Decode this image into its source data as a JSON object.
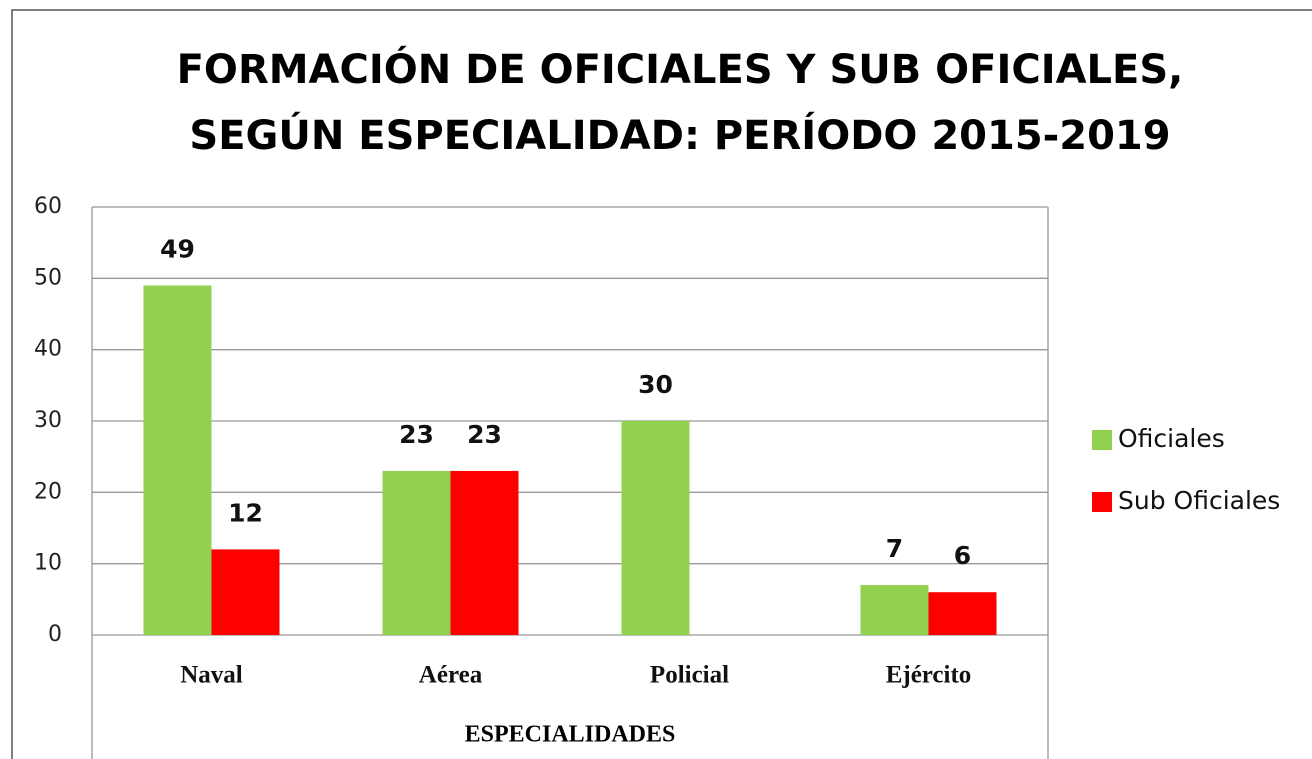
{
  "chart_data": {
    "type": "bar",
    "title": "FORMACIÓN DE OFICIALES Y SUB OFICIALES,\nSEGÚN ESPECIALIDAD: PERÍODO 2015-2019",
    "x_label": "ESPECIALIDADES",
    "categories": [
      "Naval",
      "Aérea",
      "Policial",
      "Ejército"
    ],
    "series": [
      {
        "name": "Oficiales",
        "color": "#92d050",
        "values": [
          49,
          23,
          30,
          7
        ]
      },
      {
        "name": "Sub Oficiales",
        "color": "#ff0000",
        "values": [
          12,
          23,
          null,
          6
        ]
      }
    ],
    "ylim": [
      0,
      60
    ],
    "yticks": [
      0,
      10,
      20,
      30,
      40,
      50,
      60
    ],
    "grid": true,
    "legend": "right"
  }
}
